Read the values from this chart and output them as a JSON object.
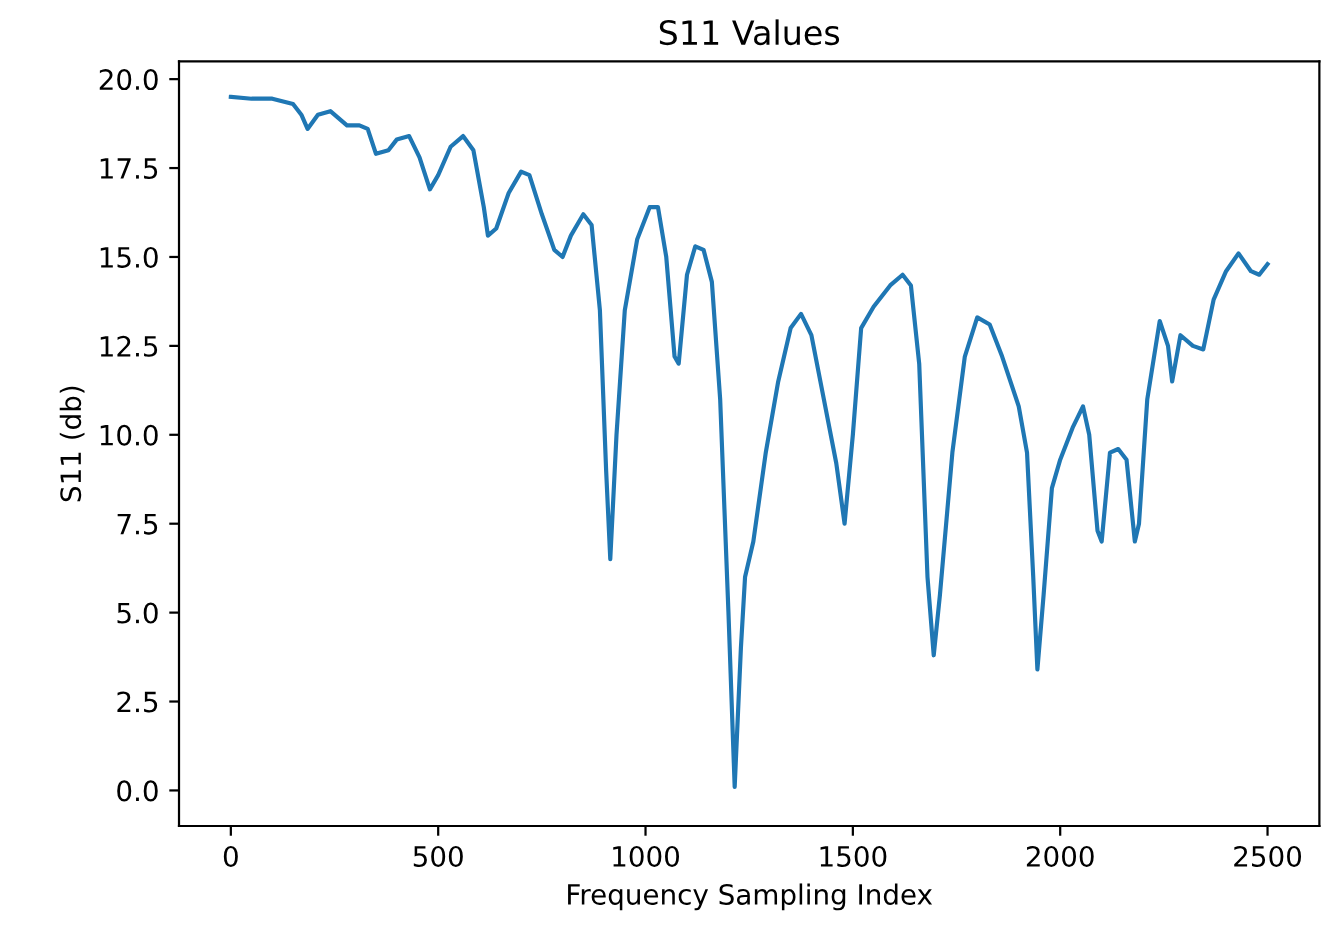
{
  "chart_data": {
    "type": "line",
    "title": "S11 Values",
    "xlabel": "Frequency Sampling Index",
    "ylabel": "S11 (db)",
    "xlim": [
      -125,
      2625
    ],
    "ylim": [
      -1.0,
      20.5
    ],
    "xticks": [
      0,
      500,
      1000,
      1500,
      2000,
      2500
    ],
    "yticks": [
      {
        "value": 0,
        "label": "0.0"
      },
      {
        "value": 2.5,
        "label": "2.5"
      },
      {
        "value": 5,
        "label": "5.0"
      },
      {
        "value": 7.5,
        "label": "7.5"
      },
      {
        "value": 10,
        "label": "10.0"
      },
      {
        "value": 12.5,
        "label": "12.5"
      },
      {
        "value": 15,
        "label": "15.0"
      },
      {
        "value": 17.5,
        "label": "17.5"
      },
      {
        "value": 20,
        "label": "20.0"
      }
    ],
    "grid": false,
    "series": [
      {
        "color": "#1f77b4",
        "x": [
          0,
          50,
          100,
          150,
          170,
          185,
          210,
          240,
          280,
          310,
          330,
          350,
          380,
          400,
          430,
          455,
          480,
          500,
          530,
          560,
          585,
          610,
          620,
          640,
          670,
          700,
          720,
          750,
          780,
          800,
          820,
          850,
          870,
          890,
          905,
          915,
          930,
          950,
          980,
          1010,
          1030,
          1050,
          1070,
          1080,
          1100,
          1120,
          1140,
          1160,
          1180,
          1200,
          1215,
          1230,
          1240,
          1260,
          1290,
          1320,
          1350,
          1375,
          1400,
          1430,
          1460,
          1480,
          1500,
          1520,
          1550,
          1590,
          1620,
          1640,
          1660,
          1680,
          1695,
          1710,
          1740,
          1770,
          1800,
          1830,
          1860,
          1900,
          1920,
          1935,
          1945,
          1960,
          1980,
          2000,
          2030,
          2055,
          2070,
          2090,
          2100,
          2120,
          2140,
          2160,
          2180,
          2190,
          2210,
          2240,
          2260,
          2270,
          2290,
          2320,
          2345,
          2370,
          2400,
          2430,
          2460,
          2480,
          2500
        ],
        "values": [
          19.5,
          19.45,
          19.45,
          19.3,
          19.0,
          18.6,
          19.0,
          19.1,
          18.7,
          18.7,
          18.6,
          17.9,
          18.0,
          18.3,
          18.4,
          17.8,
          16.9,
          17.3,
          18.1,
          18.4,
          18.0,
          16.4,
          15.6,
          15.8,
          16.8,
          17.4,
          17.3,
          16.2,
          15.2,
          15.0,
          15.6,
          16.2,
          15.9,
          13.5,
          9.0,
          6.5,
          10.0,
          13.5,
          15.5,
          16.4,
          16.4,
          15.0,
          12.2,
          12.0,
          14.5,
          15.3,
          15.2,
          14.3,
          11.0,
          5.0,
          0.1,
          4.0,
          6.0,
          7.0,
          9.5,
          11.5,
          13.0,
          13.4,
          12.8,
          11.0,
          9.2,
          7.5,
          10.0,
          13.0,
          13.6,
          14.2,
          14.5,
          14.2,
          12.0,
          6.0,
          3.8,
          5.5,
          9.5,
          12.2,
          13.3,
          13.1,
          12.2,
          10.8,
          9.5,
          6.0,
          3.4,
          5.5,
          8.5,
          9.3,
          10.2,
          10.8,
          10.0,
          7.3,
          7.0,
          9.5,
          9.6,
          9.3,
          7.0,
          7.5,
          11.0,
          13.2,
          12.5,
          11.5,
          12.8,
          12.5,
          12.4,
          13.8,
          14.6,
          15.1,
          14.6,
          14.5,
          14.8
        ]
      }
    ]
  }
}
